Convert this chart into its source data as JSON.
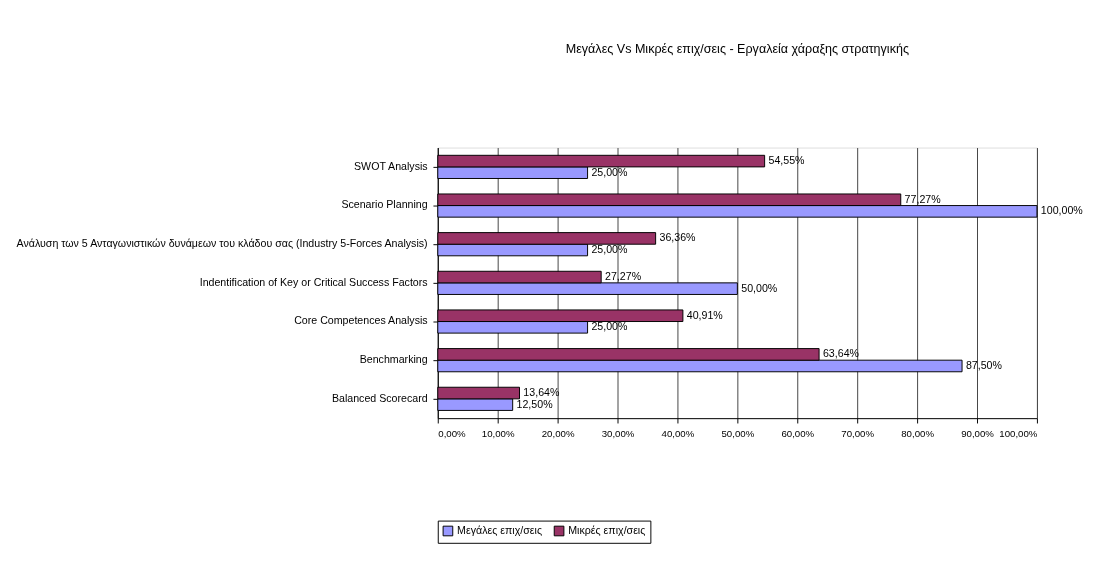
{
  "chart_data": {
    "type": "bar",
    "orientation": "horizontal",
    "title": "Μεγάλες Vs Μικρές επιχ/σεις - Εργαλεία χάραξης στρατηγικής",
    "categories": [
      "SWOT Analysis",
      "Scenario Planning",
      "Ανάλυση των 5 Ανταγωνιστικών δυνάμεων του κλάδου σας (Industry 5-Forces Analysis)",
      "Indentification of Key or Critical Success Factors",
      "Core Competences Analysis",
      "Benchmarking",
      "Balanced Scorecard"
    ],
    "series": [
      {
        "name": "Μεγάλες επιχ/σεις",
        "color": "#9999ff",
        "values": [
          25.0,
          100.0,
          25.0,
          50.0,
          25.0,
          87.5,
          12.5
        ],
        "value_labels": [
          "25,00%",
          "100,00%",
          "25,00%",
          "50,00%",
          "25,00%",
          "87,50%",
          "12,50%"
        ]
      },
      {
        "name": "Μικρές επιχ/σεις",
        "color": "#993366",
        "values": [
          54.55,
          77.27,
          36.36,
          27.27,
          40.91,
          63.64,
          13.64
        ],
        "value_labels": [
          "54,55%",
          "77,27%",
          "36,36%",
          "27,27%",
          "40,91%",
          "63,64%",
          "13,64%"
        ]
      }
    ],
    "xlim": [
      0,
      100
    ],
    "xticks": [
      {
        "value": 0,
        "label": "0,00%"
      },
      {
        "value": 10,
        "label": "10,00%"
      },
      {
        "value": 20,
        "label": "20,00%"
      },
      {
        "value": 30,
        "label": "30,00%"
      },
      {
        "value": 40,
        "label": "40,00%"
      },
      {
        "value": 50,
        "label": "50,00%"
      },
      {
        "value": 60,
        "label": "60,00%"
      },
      {
        "value": 70,
        "label": "70,00%"
      },
      {
        "value": 80,
        "label": "80,00%"
      },
      {
        "value": 90,
        "label": "90,00%"
      },
      {
        "value": 100,
        "label": "100,00%"
      }
    ],
    "grid": "x",
    "legend": "bottom"
  }
}
